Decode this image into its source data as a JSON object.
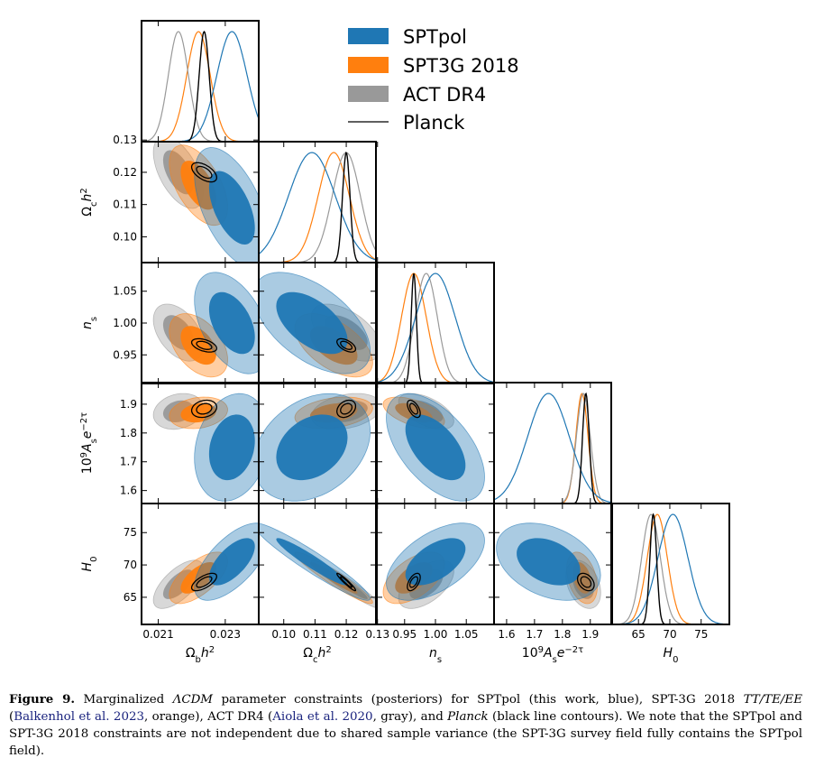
{
  "figure": {
    "legend": [
      {
        "label": "SPTpol",
        "color": "#1f77b4",
        "type": "patch"
      },
      {
        "label": "SPT3G 2018",
        "color": "#ff7f0e",
        "type": "patch"
      },
      {
        "label": "ACT DR4",
        "color": "#999999",
        "type": "patch"
      },
      {
        "label": "Planck",
        "color": "#000000",
        "type": "line"
      }
    ],
    "x_labels": [
      "Ω_b h²",
      "Ω_c h²",
      "n_s",
      "10⁹A_s e^{−2τ}",
      "H_0"
    ],
    "y_labels": [
      "Ω_c h²",
      "n_s",
      "10⁹A_s e^{−2τ}",
      "H_0"
    ],
    "x_ticks": [
      [
        "0.021",
        "0.023"
      ],
      [
        "0.10",
        "0.11",
        "0.12",
        "0.13"
      ],
      [
        "0.95",
        "1.00",
        "1.05"
      ],
      [
        "1.6",
        "1.7",
        "1.8",
        "1.9"
      ],
      [
        "65",
        "70",
        "75"
      ]
    ],
    "y_ticks": [
      [
        "0.10",
        "0.11",
        "0.12",
        "0.13"
      ],
      [
        "0.95",
        "1.00",
        "1.05"
      ],
      [
        "1.6",
        "1.7",
        "1.8",
        "1.9"
      ],
      [
        "65",
        "70",
        "75"
      ]
    ]
  },
  "chart_data": {
    "type": "triangle-corner",
    "parameters": [
      "Ω_b h²",
      "Ω_c h²",
      "n_s",
      "10⁹A_s e^{−2τ}",
      "H_0"
    ],
    "ranges": [
      [
        0.0205,
        0.024
      ],
      [
        0.092,
        0.1295
      ],
      [
        0.905,
        1.095
      ],
      [
        1.555,
        1.975
      ],
      [
        60.8,
        79.5
      ]
    ],
    "series": [
      {
        "name": "SPTpol",
        "color": "#1f77b4",
        "means": [
          0.0232,
          0.109,
          1.0,
          1.75,
          70.5
        ],
        "sigmas": [
          0.00045,
          0.0075,
          0.032,
          0.075,
          2.4
        ]
      },
      {
        "name": "SPT3G 2018",
        "color": "#ff7f0e",
        "means": [
          0.0222,
          0.116,
          0.965,
          1.87,
          68.0
        ],
        "sigmas": [
          0.00035,
          0.005,
          0.02,
          0.022,
          1.6
        ]
      },
      {
        "name": "ACT DR4",
        "color": "#999999",
        "means": [
          0.0216,
          0.12,
          0.985,
          1.875,
          67.0
        ],
        "sigmas": [
          0.0003,
          0.0045,
          0.018,
          0.025,
          1.5
        ]
      },
      {
        "name": "Planck",
        "color": "#000000",
        "means": [
          0.02237,
          0.12,
          0.9649,
          1.884,
          67.36
        ],
        "sigmas": [
          0.00015,
          0.0012,
          0.0042,
          0.012,
          0.54
        ]
      }
    ],
    "correlations": [
      [
        1.0,
        -0.55,
        -0.45,
        0.2,
        0.65
      ],
      [
        -0.55,
        1.0,
        -0.55,
        0.3,
        -0.95
      ],
      [
        -0.45,
        -0.55,
        1.0,
        -0.55,
        0.55
      ],
      [
        0.2,
        0.3,
        -0.55,
        1.0,
        -0.35
      ],
      [
        0.65,
        -0.95,
        0.55,
        -0.35,
        1.0
      ]
    ]
  },
  "caption": {
    "label": "Figure 9.",
    "t1": " Marginalized ",
    "lcdm": "ΛCDM",
    "t2": " parameter constraints (posteriors) for SPTpol (this work, blue), SPT-3G 2018 ",
    "spectra": "TT/TE/EE",
    "t3": " (",
    "cite1": "Balkenhol et al. 2023",
    "t4": ", orange), ACT DR4 (",
    "cite2": "Aiola et al. 2020",
    "t5": ", gray), and ",
    "planck": "Planck",
    "t6": " (black line contours). We note that the SPTpol and SPT-3G 2018 constraints are not independent due to shared sample variance (the SPT-3G survey field fully contains the SPTpol field)."
  }
}
